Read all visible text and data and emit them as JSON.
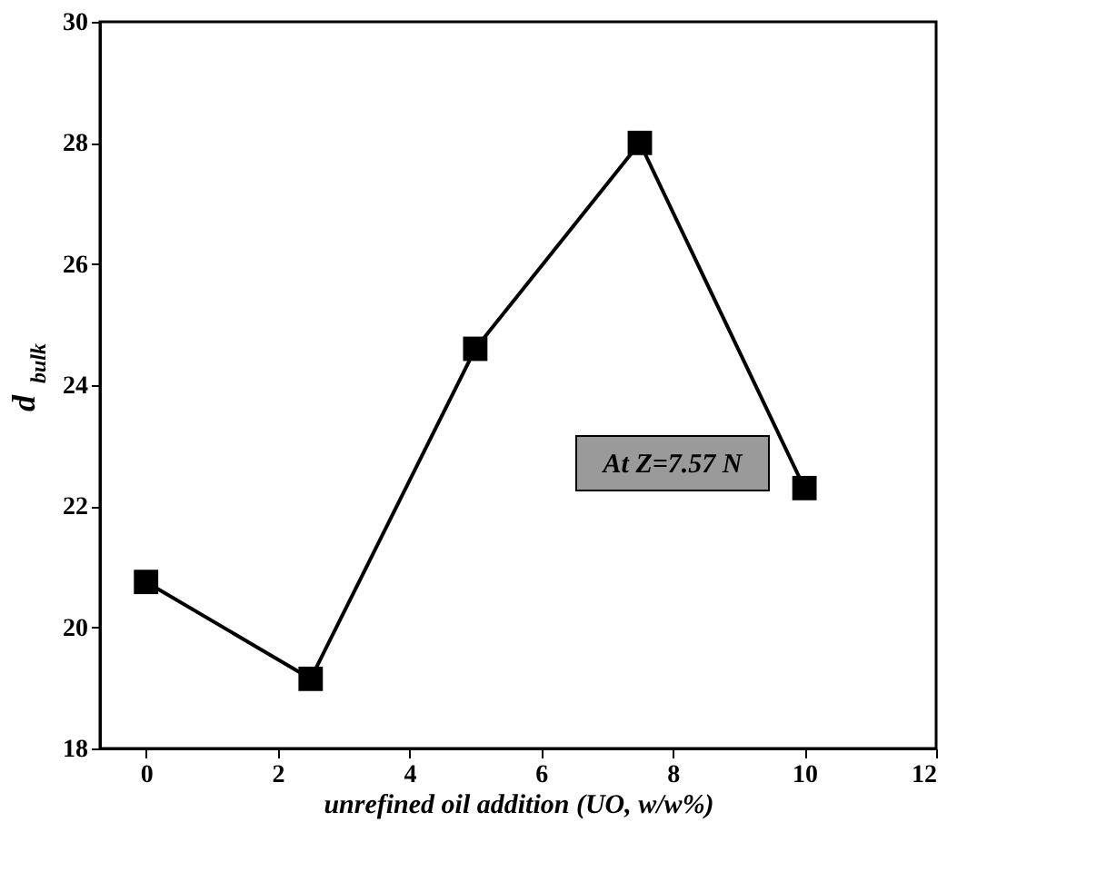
{
  "chart_data": {
    "type": "line",
    "xlabel": "unrefined oil addition (UO, w/w%)",
    "ylabel": "d$_{bulk}$",
    "x": [
      0,
      2.5,
      5,
      7.5,
      10
    ],
    "series": [
      {
        "color": "#000000",
        "values": [
          20.75,
          19.15,
          24.6,
          28.0,
          22.3
        ]
      }
    ],
    "xlim": [
      -0.7,
      12
    ],
    "xticks": [
      0,
      2,
      4,
      6,
      8,
      10,
      12
    ],
    "ylim": [
      18,
      30
    ],
    "yticks": [
      18,
      20,
      22,
      24,
      26,
      28,
      30
    ],
    "marker": "square",
    "line_style": "solid",
    "grid": false,
    "annotations": [
      "At Z=7.57 N"
    ]
  }
}
